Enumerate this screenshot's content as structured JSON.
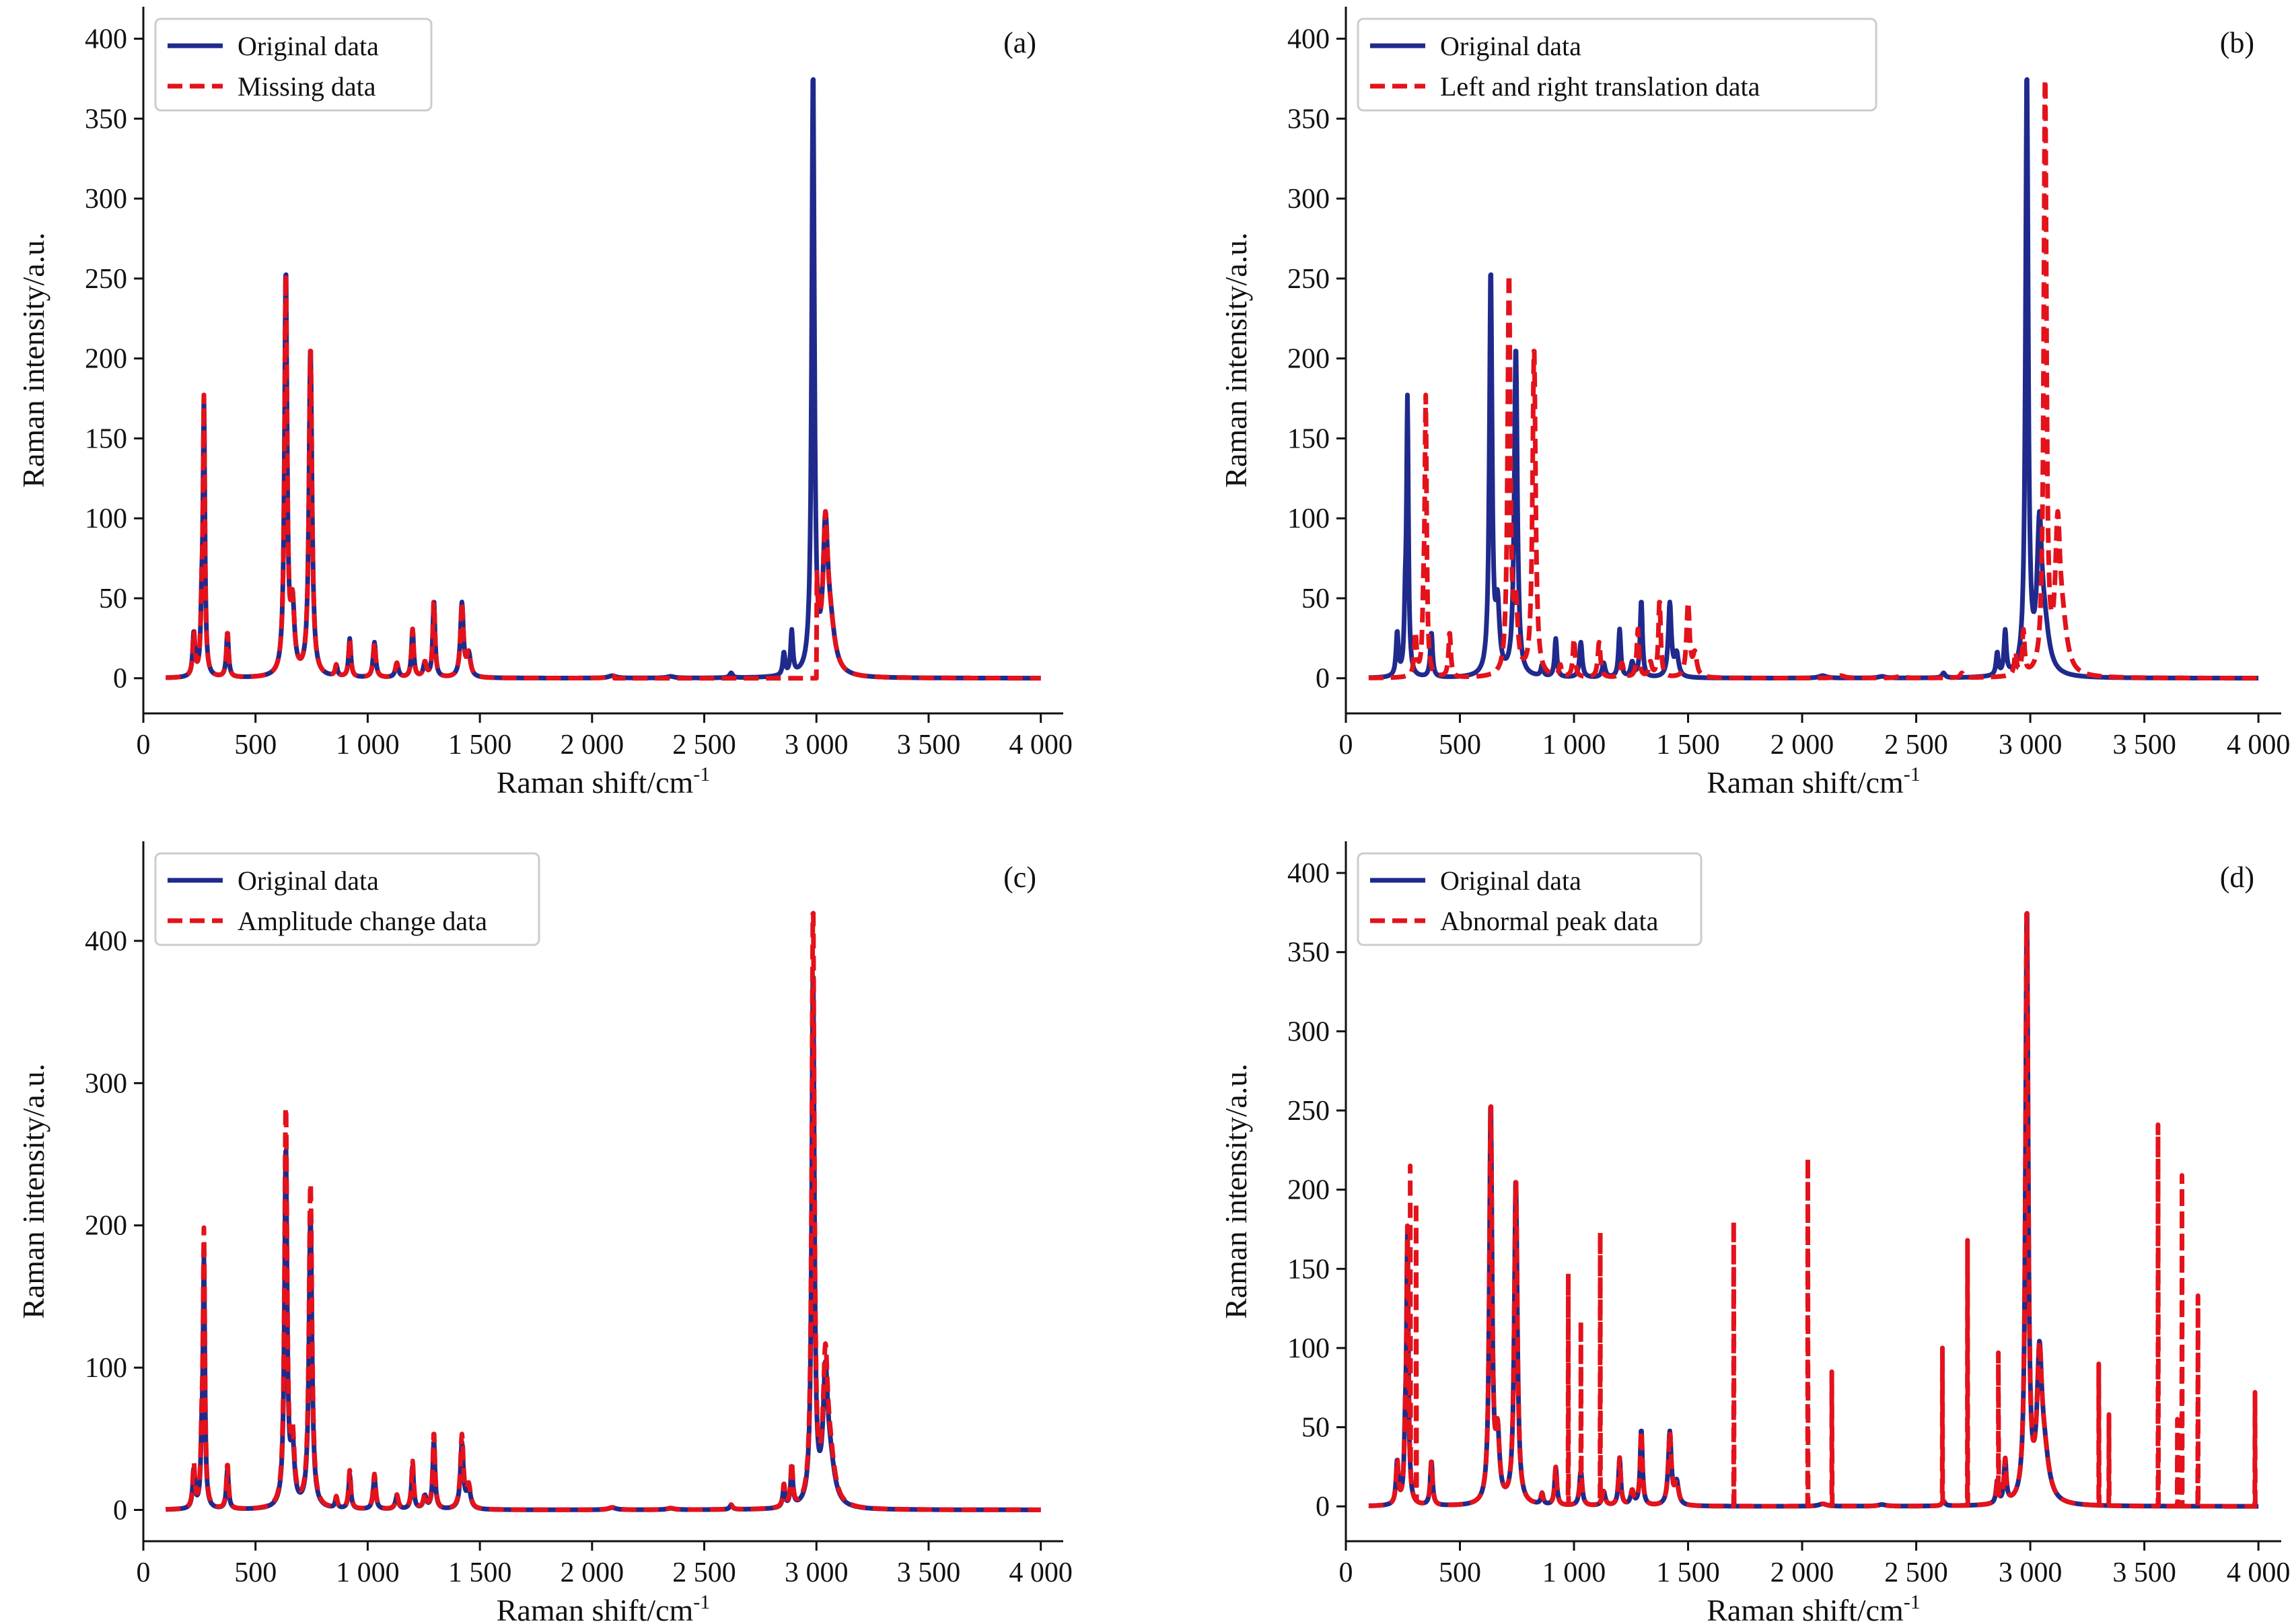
{
  "colors": {
    "original": "#1f2a8c",
    "modified": "#e3121b",
    "axis": "#111111"
  },
  "chart_data": [
    {
      "type": "line",
      "panel_label": "(a)",
      "xlabel": "Raman shift/cm",
      "xlabel_sup": "-1",
      "ylabel": "Raman intensity/a.u.",
      "xlim": [
        0,
        4100
      ],
      "ylim": [
        -22,
        420
      ],
      "xticks": [
        0,
        500,
        1000,
        1500,
        2000,
        2500,
        3000,
        3500,
        4000
      ],
      "xtick_labels": [
        "0",
        "500",
        "1 000",
        "1 500",
        "2 000",
        "2 500",
        "3 000",
        "3 500",
        "4 000"
      ],
      "yticks": [
        0,
        50,
        100,
        150,
        200,
        250,
        300,
        350,
        400
      ],
      "ytick_labels": [
        "0",
        "50",
        "100",
        "150",
        "200",
        "250",
        "300",
        "350",
        "400"
      ],
      "legend": "top-left",
      "series": [
        {
          "name": "Original data",
          "style": "solid",
          "scale": 1.0,
          "shift": 0,
          "extra_peaks": []
        },
        {
          "name": "Missing data",
          "style": "dashed",
          "scale": 1.0,
          "shift": 0,
          "missing_range": [
            2100,
            3000
          ],
          "extra_peaks": []
        }
      ]
    },
    {
      "type": "line",
      "panel_label": "(b)",
      "xlabel": "Raman shift/cm",
      "xlabel_sup": "-1",
      "ylabel": "Raman intensity/a.u.",
      "xlim": [
        0,
        4100
      ],
      "ylim": [
        -22,
        420
      ],
      "xticks": [
        0,
        500,
        1000,
        1500,
        2000,
        2500,
        3000,
        3500,
        4000
      ],
      "xtick_labels": [
        "0",
        "500",
        "1 000",
        "1 500",
        "2 000",
        "2 500",
        "3 000",
        "3 500",
        "4 000"
      ],
      "yticks": [
        0,
        50,
        100,
        150,
        200,
        250,
        300,
        350,
        400
      ],
      "ytick_labels": [
        "0",
        "50",
        "100",
        "150",
        "200",
        "250",
        "300",
        "350",
        "400"
      ],
      "legend": "top-left",
      "series": [
        {
          "name": "Original data",
          "style": "solid",
          "scale": 1.0,
          "shift": 0,
          "extra_peaks": []
        },
        {
          "name": "Left and right translation data",
          "style": "dashed",
          "scale": 1.0,
          "shift": 80,
          "extra_peaks": []
        }
      ]
    },
    {
      "type": "line",
      "panel_label": "(c)",
      "xlabel": "Raman shift/cm",
      "xlabel_sup": "-1",
      "ylabel": "Raman intensity/a.u.",
      "xlim": [
        0,
        4100
      ],
      "ylim": [
        -22,
        470
      ],
      "xticks": [
        0,
        500,
        1000,
        1500,
        2000,
        2500,
        3000,
        3500,
        4000
      ],
      "xtick_labels": [
        "0",
        "500",
        "1 000",
        "1 500",
        "2 000",
        "2 500",
        "3 000",
        "3 500",
        "4 000"
      ],
      "yticks": [
        0,
        100,
        200,
        300,
        400
      ],
      "ytick_labels": [
        "0",
        "100",
        "200",
        "300",
        "400"
      ],
      "legend": "top-left",
      "series": [
        {
          "name": "Original data",
          "style": "solid",
          "scale": 1.0,
          "shift": 0,
          "extra_peaks": []
        },
        {
          "name": "Amplitude change data",
          "style": "dashed",
          "scale": 1.12,
          "shift": 0,
          "extra_peaks": []
        }
      ]
    },
    {
      "type": "line",
      "panel_label": "(d)",
      "xlabel": "Raman shift/cm",
      "xlabel_sup": "-1",
      "ylabel": "Raman intensity/a.u.",
      "xlim": [
        0,
        4100
      ],
      "ylim": [
        -22,
        420
      ],
      "xticks": [
        0,
        500,
        1000,
        1500,
        2000,
        2500,
        3000,
        3500,
        4000
      ],
      "xtick_labels": [
        "0",
        "500",
        "1 000",
        "1 500",
        "2 000",
        "2 500",
        "3 000",
        "3 500",
        "4 000"
      ],
      "yticks": [
        0,
        50,
        100,
        150,
        200,
        250,
        300,
        350,
        400
      ],
      "ytick_labels": [
        "0",
        "50",
        "100",
        "150",
        "200",
        "250",
        "300",
        "350",
        "400"
      ],
      "legend": "top-left",
      "series": [
        {
          "name": "Original data",
          "style": "solid",
          "scale": 1.0,
          "shift": 0,
          "extra_peaks": []
        },
        {
          "name": "Abnormal peak data",
          "style": "dashed",
          "scale": 1.0,
          "shift": 0,
          "extra_peaks": [
            [
              282,
              215
            ],
            [
              308,
              192
            ],
            [
              975,
              147
            ],
            [
              1030,
              117
            ],
            [
              1115,
              173
            ],
            [
              1700,
              180
            ],
            [
              2025,
              220
            ],
            [
              2130,
              85
            ],
            [
              2615,
              100
            ],
            [
              2725,
              168
            ],
            [
              2860,
              97
            ],
            [
              3300,
              90
            ],
            [
              3345,
              58
            ],
            [
              3560,
              241
            ],
            [
              3645,
              55
            ],
            [
              3665,
              209
            ],
            [
              3735,
              133
            ],
            [
              3985,
              72
            ]
          ]
        }
      ]
    }
  ],
  "base_spectrum": {
    "x_range": [
      100,
      4000
    ],
    "peaks": [
      [
        225,
        27,
        6
      ],
      [
        260,
        32,
        5
      ],
      [
        270,
        170,
        5
      ],
      [
        375,
        28,
        6
      ],
      [
        635,
        252,
        7
      ],
      [
        665,
        40,
        10
      ],
      [
        745,
        206,
        8
      ],
      [
        860,
        7,
        6
      ],
      [
        920,
        24,
        6
      ],
      [
        1030,
        22,
        7
      ],
      [
        1130,
        9,
        8
      ],
      [
        1200,
        30,
        6
      ],
      [
        1255,
        9,
        8
      ],
      [
        1295,
        48,
        6
      ],
      [
        1420,
        46,
        8
      ],
      [
        1450,
        14,
        10
      ],
      [
        2090,
        1.5,
        20
      ],
      [
        2350,
        1,
        20
      ],
      [
        2620,
        3,
        8
      ],
      [
        2855,
        14,
        6
      ],
      [
        2890,
        27,
        6
      ],
      [
        2985,
        375,
        7
      ],
      [
        3040,
        80,
        12
      ],
      [
        3060,
        30,
        25
      ]
    ]
  }
}
